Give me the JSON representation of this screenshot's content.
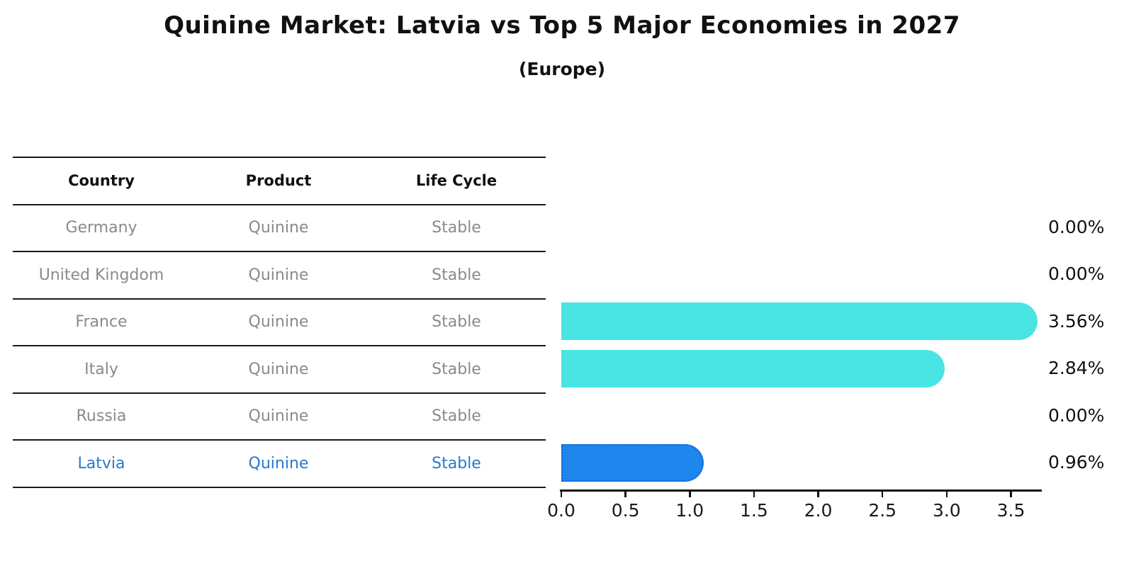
{
  "title": "Quinine Market: Latvia vs Top 5 Major Economies in 2027",
  "subtitle": "(Europe)",
  "table": {
    "headers": {
      "country": "Country",
      "product": "Product",
      "life_cycle": "Life Cycle"
    },
    "rows": [
      {
        "country": "Germany",
        "product": "Quinine",
        "life_cycle": "Stable",
        "highlight": false
      },
      {
        "country": "United Kingdom",
        "product": "Quinine",
        "life_cycle": "Stable",
        "highlight": false
      },
      {
        "country": "France",
        "product": "Quinine",
        "life_cycle": "Stable",
        "highlight": false
      },
      {
        "country": "Italy",
        "product": "Quinine",
        "life_cycle": "Stable",
        "highlight": false
      },
      {
        "country": "Russia",
        "product": "Quinine",
        "life_cycle": "Stable",
        "highlight": false
      },
      {
        "country": "Latvia",
        "product": "Quinine",
        "life_cycle": "Stable",
        "highlight": true
      }
    ]
  },
  "chart_data": {
    "type": "bar",
    "orientation": "horizontal",
    "title": "Quinine Market: Latvia vs Top 5 Major Economies in 2027",
    "subtitle": "(Europe)",
    "categories": [
      "Germany",
      "United Kingdom",
      "France",
      "Italy",
      "Russia",
      "Latvia"
    ],
    "values": [
      0.0,
      0.0,
      3.56,
      2.84,
      0.0,
      0.96
    ],
    "value_labels": [
      "0.00%",
      "0.00%",
      "3.56%",
      "2.84%",
      "0.00%",
      "0.96%"
    ],
    "unit": "%",
    "xticks": [
      0.0,
      0.5,
      1.0,
      1.5,
      2.0,
      2.5,
      3.0,
      3.5
    ],
    "xtick_labels": [
      "0.0",
      "0.5",
      "1.0",
      "1.5",
      "2.0",
      "2.5",
      "3.0",
      "3.5"
    ],
    "xlim": [
      0,
      3.74
    ],
    "grid": false,
    "legend": null,
    "bar_color": "#48e5e4",
    "highlight_color": "#1e86ec",
    "highlight_text_color": "#2878cd",
    "highlight_index": 5
  }
}
